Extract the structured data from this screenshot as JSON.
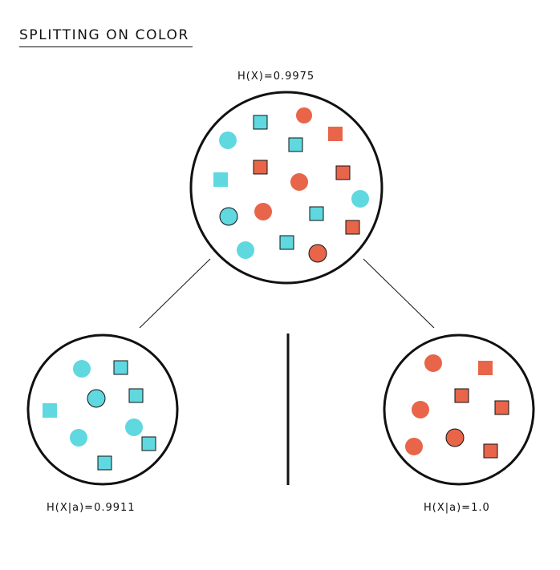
{
  "title": "SPLITTING ON COLOR",
  "nodes": {
    "root": {
      "entropy_label": "H(X)=0.9975"
    },
    "left": {
      "entropy_label": "H(X|a)=0.9911"
    },
    "right": {
      "entropy_label": "H(X|a)=1.0"
    }
  },
  "colors": {
    "cyan": "#5fd8e0",
    "red": "#e8654a",
    "outline": "#111111"
  }
}
